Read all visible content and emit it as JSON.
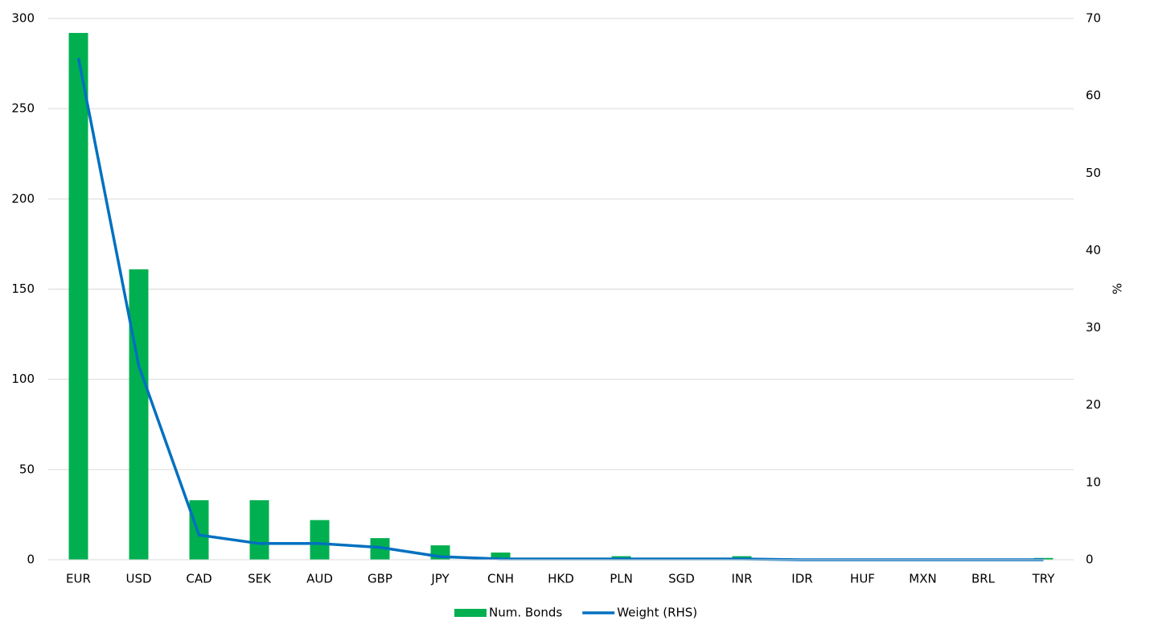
{
  "chart_data": {
    "type": "bar-line",
    "categories": [
      "EUR",
      "USD",
      "CAD",
      "SEK",
      "AUD",
      "GBP",
      "JPY",
      "CNH",
      "HKD",
      "PLN",
      "SGD",
      "INR",
      "IDR",
      "HUF",
      "MXN",
      "BRL",
      "TRY"
    ],
    "series": [
      {
        "name": "Num. Bonds",
        "type": "bar",
        "color": "#00b050",
        "values": [
          292,
          161,
          33,
          33,
          22,
          12,
          8,
          4,
          0,
          2,
          0,
          2,
          0,
          0,
          0,
          0,
          1
        ]
      },
      {
        "name": "Weight (RHS)",
        "type": "line",
        "axis": "y2",
        "color": "#0070c0",
        "values": [
          64.9,
          25.1,
          3.2,
          2.1,
          2.1,
          1.6,
          0.4,
          0.1,
          0.1,
          0.1,
          0.1,
          0.1,
          0,
          0,
          0,
          0,
          0
        ]
      }
    ],
    "ylim": [
      0,
      300
    ],
    "yticks": [
      0,
      50,
      100,
      150,
      200,
      250,
      300
    ],
    "y2lim": [
      0,
      70
    ],
    "y2ticks": [
      0,
      10,
      20,
      30,
      40,
      50,
      60,
      70
    ],
    "y2label": "%",
    "grid": true,
    "legend": "bottom"
  }
}
